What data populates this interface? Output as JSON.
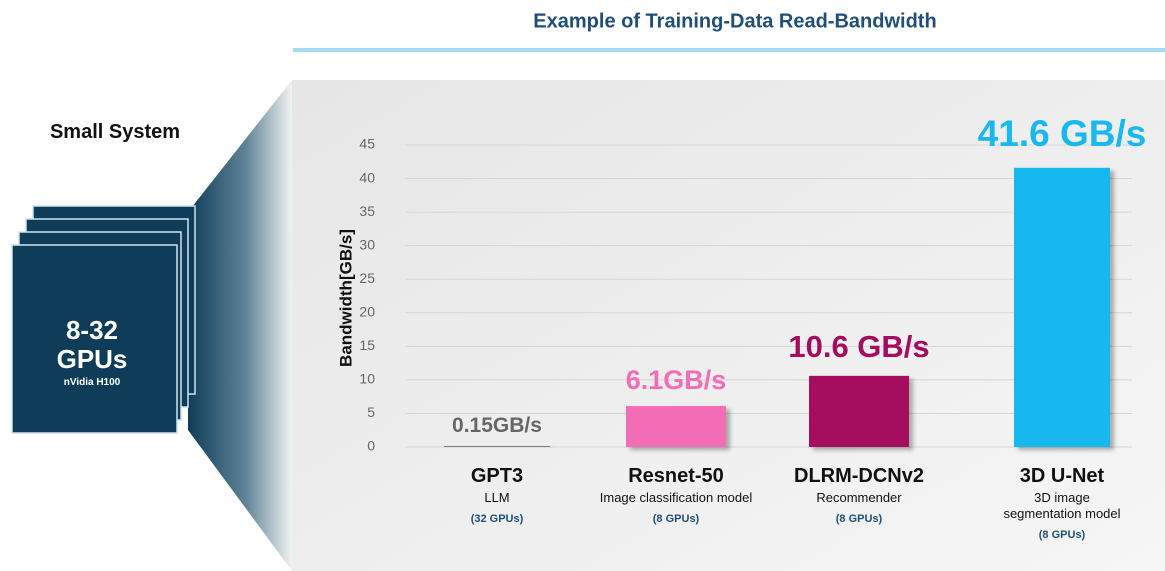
{
  "chart_data": {
    "type": "bar",
    "title": "Example of Training-Data Read-Bandwidth",
    "ylabel": "Bandwidth[GB/s]",
    "categories": [
      "GPT3",
      "Resnet-50",
      "DLRM-DCNv2",
      "3D U-Net"
    ],
    "descriptions": [
      "LLM",
      "Image classification model",
      "Recommender",
      "3D image segmentation model"
    ],
    "gpu_counts": [
      "(32 GPUs)",
      "(8 GPUs)",
      "(8 GPUs)",
      "(8 GPUs)"
    ],
    "values": [
      0.15,
      6.1,
      10.6,
      41.6
    ],
    "value_labels": [
      "0.15GB/s",
      "6.1GB/s",
      "10.6 GB/s",
      "41.6 GB/s"
    ],
    "colors": [
      "#7f7f7f",
      "#f36cb6",
      "#a50b5e",
      "#19b8ef"
    ],
    "ylim": [
      0,
      45
    ],
    "yticks": [
      0,
      5,
      10,
      15,
      20,
      25,
      30,
      35,
      40,
      45
    ],
    "grid": true,
    "system": {
      "heading": "Small System",
      "gpus": "8-32 GPUs",
      "model": "nVidia H100"
    }
  }
}
